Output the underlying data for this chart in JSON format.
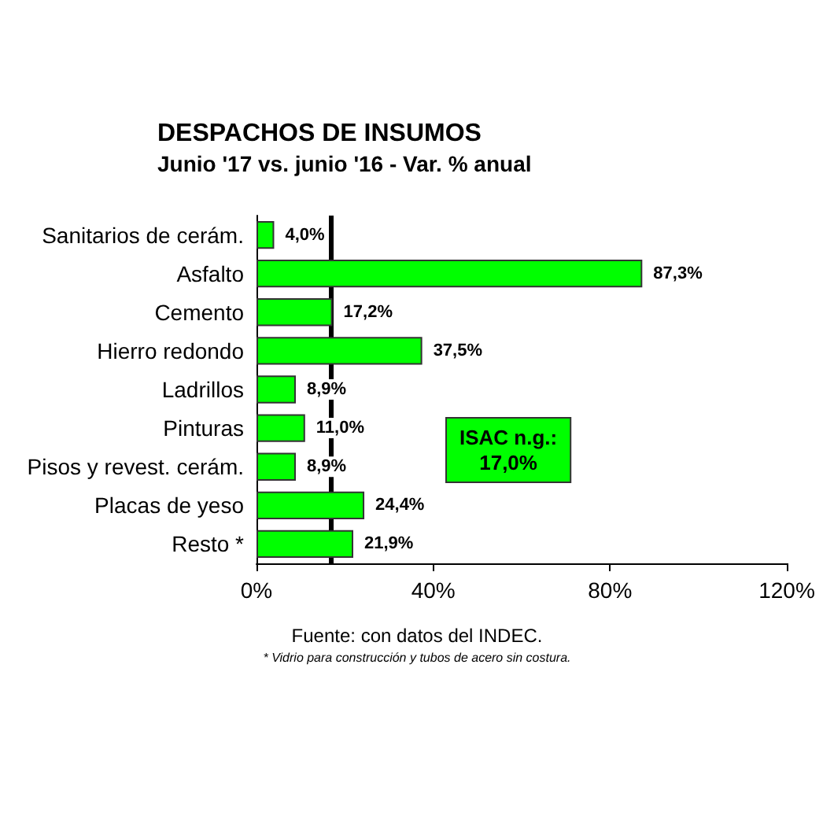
{
  "chart_data": {
    "type": "bar",
    "orientation": "horizontal",
    "title": "DESPACHOS DE INSUMOS",
    "subtitle": "Junio '17 vs. junio '16 - Var. % anual",
    "categories": [
      "Sanitarios de cerám.",
      "Asfalto",
      "Cemento",
      "Hierro redondo",
      "Ladrillos",
      "Pinturas",
      "Pisos y revest. cerám.",
      "Placas de yeso",
      "Resto *"
    ],
    "values": [
      4.0,
      87.3,
      17.2,
      37.5,
      8.9,
      11.0,
      8.9,
      24.4,
      21.9
    ],
    "value_labels": [
      "4,0%",
      "87,3%",
      "17,2%",
      "37,5%",
      "8,9%",
      "11,0%",
      "8,9%",
      "24,4%",
      "21,9%"
    ],
    "color": "#00ff00",
    "xlim": [
      0,
      120
    ],
    "xticks": [
      {
        "value": 0,
        "label": "0%"
      },
      {
        "value": 40,
        "label": "40%"
      },
      {
        "value": 80,
        "label": "80%"
      },
      {
        "value": 120,
        "label": "120%"
      }
    ],
    "ref_lines": [
      {
        "axis": "x",
        "value": 17.0,
        "label": "ISAC n.g.:\n17,0%",
        "color": "#000000"
      }
    ],
    "grid": false,
    "annotations": [
      "Fuente: con datos del INDEC.",
      "* Vidrio para construcción y tubos de acero sin costura."
    ]
  }
}
